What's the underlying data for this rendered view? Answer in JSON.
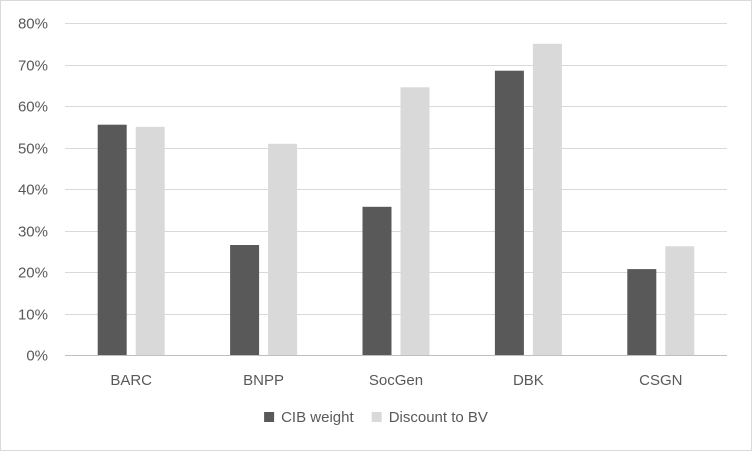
{
  "chart_data": {
    "type": "bar",
    "title": "",
    "xlabel": "",
    "ylabel": "",
    "categories": [
      "BARC",
      "BNPP",
      "SocGen",
      "DBK",
      "CSGN"
    ],
    "series": [
      {
        "name": "CIB weight",
        "color": "#595959",
        "values": [
          55.5,
          26.5,
          35.7,
          68.5,
          20.7
        ]
      },
      {
        "name": "Discount to BV",
        "color": "#d9d9d9",
        "values": [
          55.0,
          50.9,
          64.5,
          75.0,
          26.2
        ]
      }
    ],
    "ylim": [
      0,
      80
    ],
    "yticks": [
      0,
      10,
      20,
      30,
      40,
      50,
      60,
      70,
      80
    ],
    "ytick_labels": [
      "0%",
      "10%",
      "20%",
      "30%",
      "40%",
      "50%",
      "60%",
      "70%",
      "80%"
    ],
    "grid": true,
    "gridline_color": "#d9d9d9",
    "legend_position": "bottom"
  }
}
